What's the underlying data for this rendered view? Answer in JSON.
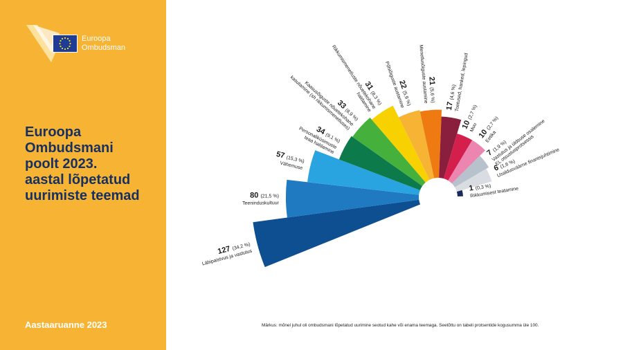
{
  "brand": {
    "line1": "Euroopa",
    "line2": "Ombudsman"
  },
  "title_lines": [
    "Euroopa",
    "Ombudsmani",
    "poolt 2023.",
    "aastal lõpetatud",
    "uurimiste teemad"
  ],
  "footer": "Aastaaruanne 2023",
  "note": "Märkus: mõnel juhul oli ombudsmani lõpetatud uurimine seotud kahe või enama teemaga. Seetõttu on tabeli protsentide kogusumma üle 100.",
  "colors": {
    "sidebar": "#F6B334",
    "title": "#17305f"
  },
  "chart_data": {
    "type": "pie",
    "variant": "polar-area",
    "slices": [
      {
        "value": 127,
        "pct": "(34,2 %)",
        "lines": [
          "Läbipaistvus ja vastutus"
        ],
        "color": "#0d4f91"
      },
      {
        "value": 80,
        "pct": "(21,5 %)",
        "lines": [
          "Teeninduskultuur"
        ],
        "color": "#1f7ac2"
      },
      {
        "value": 57,
        "pct": "(15,3 %)",
        "lines": [
          "Vähemuse"
        ],
        "color": "#29a4e0"
      },
      {
        "value": 34,
        "pct": "(9,1 %)",
        "lines": [
          "Personaliküsimuste",
          "teaa haldamine"
        ],
        "color": "#0c7a4a"
      },
      {
        "value": 33,
        "pct": "(8,9 %)",
        "lines": [
          "Kaasusõiguste nõuetekohane",
          "kasutamine (sh rikkumismenetluses)"
        ],
        "color": "#45b03c"
      },
      {
        "value": 31,
        "pct": "(8,3 %)",
        "lines": [
          "Rikkumismenetluste nõuetekohane",
          "haldamine"
        ],
        "color": "#f8d200"
      },
      {
        "value": 22,
        "pct": "(5,9 %)",
        "lines": [
          "Põhiõiguste austamine"
        ],
        "color": "#f6b334"
      },
      {
        "value": 21,
        "pct": "(5,6 %)",
        "lines": [
          "Menetlusõiguste austamine"
        ],
        "color": "#ef7a12"
      },
      {
        "value": 17,
        "pct": "(4,6 %)",
        "lines": [
          "Toetused, hanked, lepingud"
        ],
        "color": "#8a1e3d"
      },
      {
        "value": 10,
        "pct": "(2,7 %)",
        "lines": [
          "Muu"
        ],
        "color": "#d41f4d"
      },
      {
        "value": 10,
        "pct": "(2,7 %)",
        "lines": [
          "Eetika"
        ],
        "color": "#ec86b0"
      },
      {
        "value": 7,
        "pct": "(1,9 %)",
        "lines": [
          "Vastutus ja üldsuse osalemine",
          "EL otsustusprotsessis"
        ],
        "color": "#b8c2cc"
      },
      {
        "value": 6,
        "pct": "(1,6 %)",
        "lines": [
          "Usaldusväärne finantsjuhtimine"
        ],
        "color": "#d9dde2"
      },
      {
        "value": 1,
        "pct": "(0,3 %)",
        "lines": [
          "Rikkumisest teatamine"
        ],
        "color": "#1a2a5a"
      }
    ]
  }
}
